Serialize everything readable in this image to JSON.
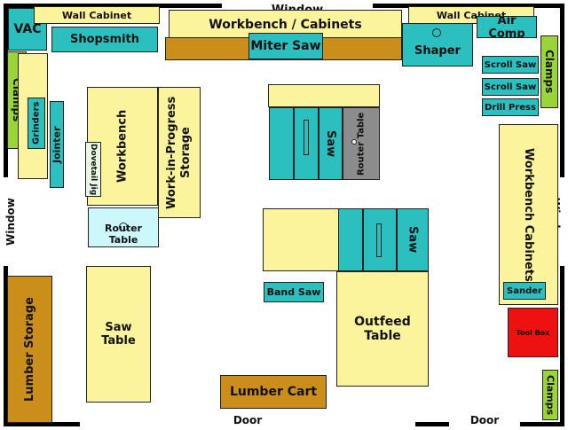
{
  "walls": {
    "window_top": "Window",
    "window_left": "Window",
    "window_right": "Window",
    "door_left": "Door",
    "door_right": "Door"
  },
  "items": {
    "vac": "VAC",
    "wall_cabinet_left": "Wall Cabinet",
    "workbench_cabinets_top": "Workbench / Cabinets",
    "wall_cabinet_right": "Wall Cabinet",
    "air_comp": "Air Comp",
    "shopsmith": "Shopsmith",
    "miter_saw": "Miter Saw",
    "shaper": "Shaper",
    "clamps_left": "Clamps",
    "clamps_right_top": "Clamps",
    "scroll_saw_1": "Scroll Saw",
    "scroll_saw_2": "Scroll Saw",
    "drill_press": "Drill Press",
    "grinders": "Grinders",
    "jointer": "Jointer",
    "workbench": "Workbench",
    "dovetail_jig": "Dovetail Jig",
    "wip_storage": "Work-in-Progress Storage",
    "saw_upper": "Saw",
    "router_table_grey": "Router Table",
    "workbench_cabinets_right": "Workbench Cabinets",
    "router_table_small": "Router Table",
    "saw_lower": "Saw",
    "band_saw": "Band Saw",
    "sander": "Sander",
    "tool_box": "Tool Box",
    "lumber_storage": "Lumber Storage",
    "saw_table": "Saw Table",
    "outfeed_table": "Outfeed Table",
    "lumber_cart": "Lumber Cart",
    "clamps_right_bottom": "Clamps"
  },
  "colors": {
    "table": "#fbf49c",
    "machine": "#2bbfbf",
    "clamps": "#9ad33a",
    "lumber": "#cc8e1a",
    "router_table_grey": "#8c8c8c",
    "router_table_small": "#cdf8fb",
    "tool_box": "#ee1111",
    "wall": "#000000"
  }
}
